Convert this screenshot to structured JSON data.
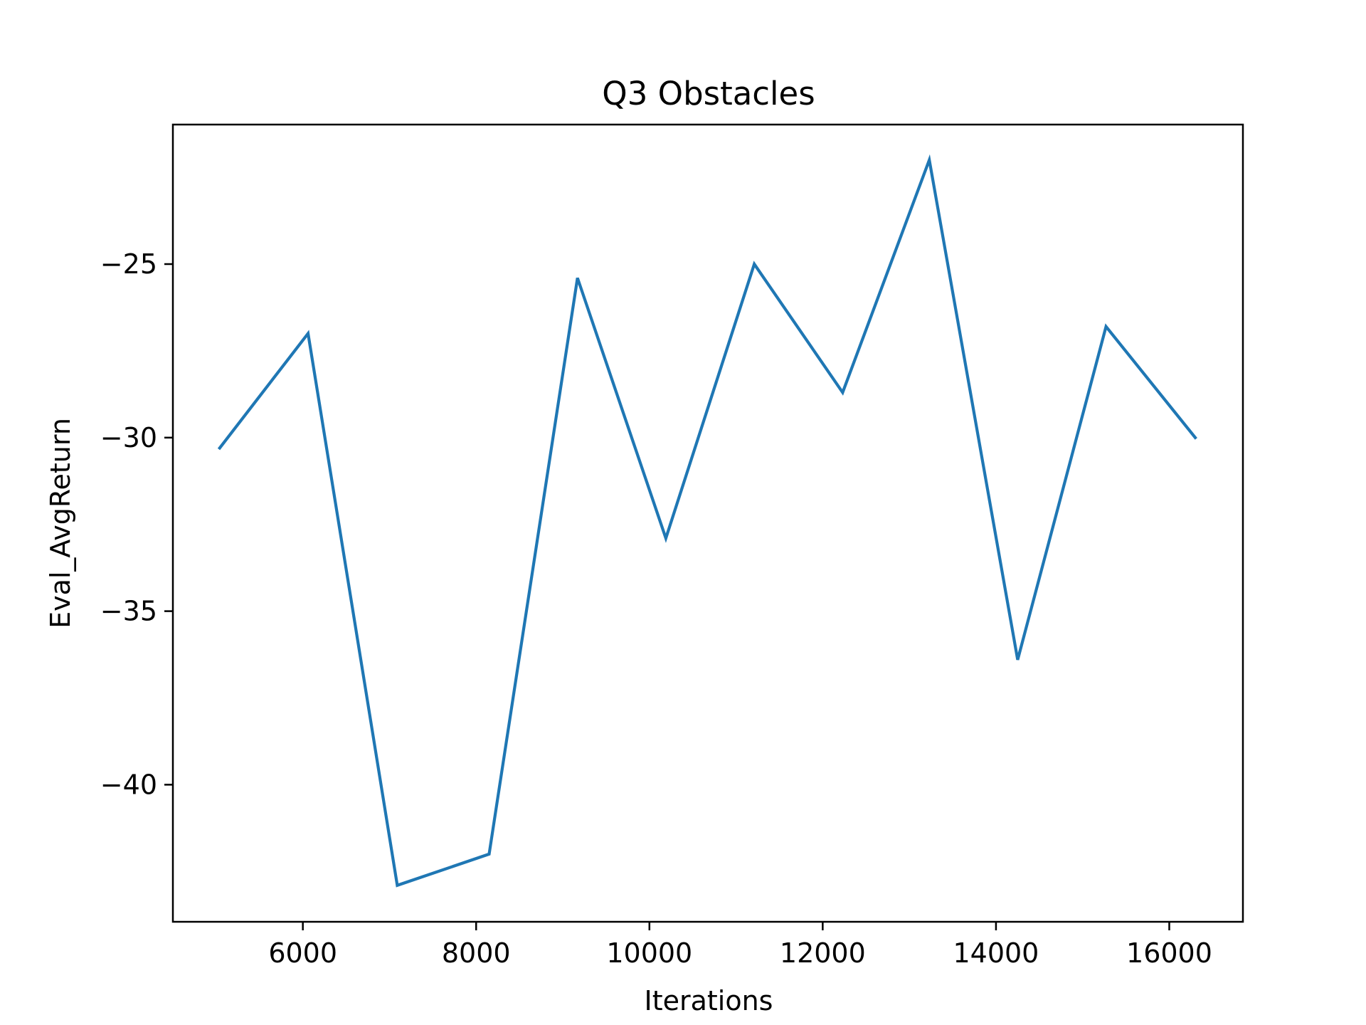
{
  "chart_data": {
    "type": "line",
    "title": "Q3 Obstacles",
    "xlabel": "Iterations",
    "ylabel": "Eval_AvgReturn",
    "xlim": [
      4500,
      16850
    ],
    "ylim": [
      -43.95,
      -20.98
    ],
    "xticks": [
      {
        "value": 6000,
        "label": "6000"
      },
      {
        "value": 8000,
        "label": "8000"
      },
      {
        "value": 10000,
        "label": "10000"
      },
      {
        "value": 12000,
        "label": "12000"
      },
      {
        "value": 14000,
        "label": "14000"
      },
      {
        "value": 16000,
        "label": "16000"
      }
    ],
    "yticks": [
      {
        "value": -25,
        "label": "−25"
      },
      {
        "value": -30,
        "label": "−30"
      },
      {
        "value": -35,
        "label": "−35"
      },
      {
        "value": -40,
        "label": "−40"
      }
    ],
    "grid": false,
    "colors": {
      "line": "#1f77b4",
      "axes": "#000000",
      "background": "#ffffff"
    },
    "series": [
      {
        "x": [
          5040,
          6060,
          7090,
          8150,
          9170,
          10190,
          11210,
          12230,
          13230,
          14250,
          15270,
          16300
        ],
        "y": [
          -30.3,
          -27.0,
          -42.9,
          -42.0,
          -25.4,
          -32.9,
          -25.0,
          -28.7,
          -22.0,
          -36.4,
          -26.8,
          -30.0
        ]
      }
    ]
  }
}
